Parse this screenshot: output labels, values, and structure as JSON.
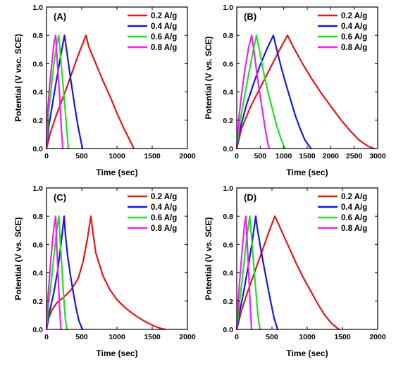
{
  "chart_data": [
    {
      "type": "line",
      "panel_label": "(A)",
      "xlabel": "Time (sec)",
      "ylabel": "Potential (V vsc. SCE)",
      "xlim": [
        0,
        2000
      ],
      "ylim": [
        0,
        1.0
      ],
      "xticks": [
        0,
        500,
        1000,
        1500,
        2000
      ],
      "yticks": [
        0.0,
        0.2,
        0.4,
        0.6,
        0.8,
        1.0
      ],
      "legend_position": "top-right",
      "series": [
        {
          "name": "0.2 A/g",
          "color": "#e8141a",
          "x": [
            0,
            60,
            150,
            250,
            350,
            450,
            560,
            600,
            700,
            800,
            900,
            1000,
            1100,
            1240
          ],
          "y": [
            0,
            0.12,
            0.25,
            0.38,
            0.52,
            0.66,
            0.8,
            0.72,
            0.6,
            0.48,
            0.37,
            0.25,
            0.14,
            0
          ]
        },
        {
          "name": "0.4 A/g",
          "color": "#1418e6",
          "x": [
            0,
            30,
            80,
            140,
            200,
            255,
            290,
            340,
            400,
            450,
            510
          ],
          "y": [
            0,
            0.15,
            0.3,
            0.48,
            0.65,
            0.8,
            0.68,
            0.5,
            0.3,
            0.15,
            0
          ]
        },
        {
          "name": "0.6 A/g",
          "color": "#22e022",
          "x": [
            0,
            20,
            60,
            100,
            150,
            175,
            200,
            240,
            280,
            310
          ],
          "y": [
            0,
            0.2,
            0.4,
            0.58,
            0.75,
            0.8,
            0.65,
            0.42,
            0.18,
            0
          ]
        },
        {
          "name": "0.8 A/g",
          "color": "#ee22ee",
          "x": [
            0,
            15,
            45,
            80,
            110,
            130,
            155,
            185,
            210,
            230
          ],
          "y": [
            0,
            0.25,
            0.45,
            0.62,
            0.76,
            0.8,
            0.6,
            0.38,
            0.15,
            0
          ]
        }
      ]
    },
    {
      "type": "line",
      "panel_label": "(B)",
      "xlabel": "Time (sec)",
      "ylabel": "Potential (V vs. SCE)",
      "xlim": [
        0,
        3000
      ],
      "ylim": [
        0,
        1.0
      ],
      "xticks": [
        0,
        500,
        1000,
        1500,
        2000,
        2500,
        3000
      ],
      "yticks": [
        0.0,
        0.2,
        0.4,
        0.6,
        0.8,
        1.0
      ],
      "legend_position": "top-right",
      "series": [
        {
          "name": "0.2 A/g",
          "color": "#e8141a",
          "x": [
            0,
            100,
            300,
            500,
            700,
            900,
            1080,
            1200,
            1400,
            1600,
            1800,
            2000,
            2200,
            2400,
            2600,
            2800,
            2920
          ],
          "y": [
            0,
            0.14,
            0.3,
            0.43,
            0.56,
            0.69,
            0.8,
            0.72,
            0.6,
            0.49,
            0.39,
            0.3,
            0.21,
            0.13,
            0.06,
            0.015,
            0
          ]
        },
        {
          "name": "0.4 A/g",
          "color": "#1418e6",
          "x": [
            0,
            80,
            200,
            350,
            500,
            650,
            780,
            850,
            950,
            1050,
            1150,
            1250,
            1350,
            1450,
            1580
          ],
          "y": [
            0,
            0.15,
            0.3,
            0.45,
            0.59,
            0.71,
            0.8,
            0.7,
            0.57,
            0.45,
            0.34,
            0.23,
            0.14,
            0.06,
            0
          ]
        },
        {
          "name": "0.6 A/g",
          "color": "#22e022",
          "x": [
            0,
            60,
            150,
            250,
            350,
            420,
            480,
            560,
            650,
            750,
            850,
            950,
            1020
          ],
          "y": [
            0,
            0.17,
            0.34,
            0.52,
            0.69,
            0.8,
            0.7,
            0.56,
            0.42,
            0.29,
            0.16,
            0.06,
            0
          ]
        },
        {
          "name": "0.8 A/g",
          "color": "#ee22ee",
          "x": [
            0,
            40,
            100,
            170,
            250,
            320,
            370,
            420,
            480,
            540,
            600,
            660,
            690
          ],
          "y": [
            0,
            0.2,
            0.38,
            0.55,
            0.71,
            0.8,
            0.68,
            0.55,
            0.41,
            0.28,
            0.15,
            0.04,
            0
          ]
        }
      ]
    },
    {
      "type": "line",
      "panel_label": "(C)",
      "xlabel": "Time (sec)",
      "ylabel": "Potential (V vs. SCE)",
      "xlim": [
        0,
        2000
      ],
      "ylim": [
        0,
        1.0
      ],
      "xticks": [
        0,
        500,
        1000,
        1500,
        2000
      ],
      "yticks": [
        0.0,
        0.2,
        0.4,
        0.6,
        0.8,
        1.0
      ],
      "legend_position": "top-right",
      "series": [
        {
          "name": "0.2 A/g",
          "color": "#e8141a",
          "x": [
            0,
            30,
            80,
            150,
            250,
            350,
            450,
            520,
            580,
            630,
            660,
            700,
            800,
            900,
            1000,
            1100,
            1200,
            1300,
            1400,
            1500,
            1600,
            1680
          ],
          "y": [
            0,
            0.08,
            0.14,
            0.19,
            0.23,
            0.28,
            0.36,
            0.48,
            0.64,
            0.8,
            0.68,
            0.54,
            0.38,
            0.28,
            0.21,
            0.16,
            0.12,
            0.085,
            0.055,
            0.03,
            0.01,
            0
          ]
        },
        {
          "name": "0.4 A/g",
          "color": "#1418e6",
          "x": [
            0,
            40,
            100,
            160,
            210,
            250,
            270,
            300,
            340,
            380,
            420,
            460,
            510
          ],
          "y": [
            0,
            0.12,
            0.25,
            0.42,
            0.62,
            0.8,
            0.66,
            0.52,
            0.38,
            0.26,
            0.15,
            0.06,
            0
          ]
        },
        {
          "name": "0.6 A/g",
          "color": "#22e022",
          "x": [
            0,
            30,
            70,
            110,
            150,
            175,
            195,
            220,
            245,
            270,
            290
          ],
          "y": [
            0,
            0.18,
            0.35,
            0.54,
            0.72,
            0.8,
            0.62,
            0.42,
            0.22,
            0.06,
            0
          ]
        },
        {
          "name": "0.8 A/g",
          "color": "#ee22ee",
          "x": [
            0,
            20,
            50,
            80,
            110,
            130,
            145,
            165,
            185,
            205
          ],
          "y": [
            0,
            0.22,
            0.42,
            0.6,
            0.74,
            0.8,
            0.6,
            0.38,
            0.16,
            0
          ]
        }
      ]
    },
    {
      "type": "line",
      "panel_label": "(D)",
      "xlabel": "Time (sec)",
      "ylabel": "Potential (V vs. SCE)",
      "xlim": [
        0,
        2000
      ],
      "ylim": [
        0,
        1.0
      ],
      "xticks": [
        0,
        500,
        1000,
        1500,
        2000
      ],
      "yticks": [
        0.0,
        0.2,
        0.4,
        0.6,
        0.8,
        1.0
      ],
      "legend_position": "top-right",
      "series": [
        {
          "name": "0.2 A/g",
          "color": "#e8141a",
          "x": [
            0,
            60,
            150,
            250,
            350,
            450,
            540,
            570,
            650,
            750,
            850,
            950,
            1050,
            1150,
            1250,
            1350,
            1450
          ],
          "y": [
            0,
            0.12,
            0.26,
            0.4,
            0.54,
            0.68,
            0.8,
            0.77,
            0.68,
            0.57,
            0.46,
            0.36,
            0.27,
            0.18,
            0.1,
            0.04,
            0
          ]
        },
        {
          "name": "0.4 A/g",
          "color": "#1418e6",
          "x": [
            0,
            40,
            100,
            160,
            220,
            270,
            290,
            330,
            380,
            430,
            480,
            530,
            580
          ],
          "y": [
            0,
            0.12,
            0.27,
            0.44,
            0.62,
            0.8,
            0.72,
            0.6,
            0.46,
            0.33,
            0.2,
            0.08,
            0
          ]
        },
        {
          "name": "0.6 A/g",
          "color": "#22e022",
          "x": [
            0,
            30,
            70,
            110,
            150,
            185,
            210,
            240,
            270,
            300,
            330
          ],
          "y": [
            0,
            0.15,
            0.32,
            0.5,
            0.68,
            0.8,
            0.65,
            0.46,
            0.28,
            0.1,
            0
          ]
        },
        {
          "name": "0.8 A/g",
          "color": "#ee22ee",
          "x": [
            0,
            20,
            50,
            80,
            110,
            130,
            150,
            170,
            190,
            210
          ],
          "y": [
            0,
            0.2,
            0.4,
            0.58,
            0.74,
            0.8,
            0.6,
            0.4,
            0.18,
            0
          ]
        }
      ]
    }
  ]
}
